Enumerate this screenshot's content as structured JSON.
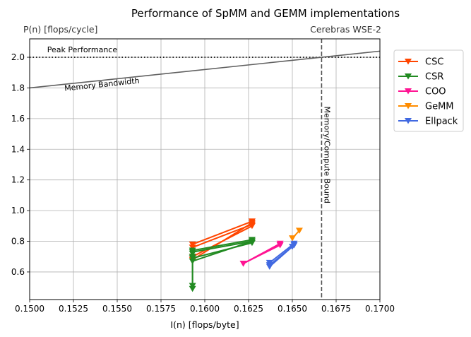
{
  "chart_data": {
    "type": "line",
    "title": "Performance of SpMM and GEMM implementations",
    "xlabel": "I(n) [flops/byte]",
    "ylabel": "P(n) [flops/cycle]",
    "device_label": "Cerebras WSE-2",
    "xlim": [
      0.15,
      0.17
    ],
    "ylim": [
      0.42,
      2.12
    ],
    "xticks": [
      "0.1500",
      "0.1525",
      "0.1550",
      "0.1575",
      "0.1600",
      "0.1625",
      "0.1650",
      "0.1675",
      "0.1700"
    ],
    "xtick_values": [
      0.15,
      0.1525,
      0.155,
      0.1575,
      0.16,
      0.1625,
      0.165,
      0.1675,
      0.17
    ],
    "yticks": [
      "0.6",
      "0.8",
      "1.0",
      "1.2",
      "1.4",
      "1.6",
      "1.8",
      "2.0"
    ],
    "ytick_values": [
      0.6,
      0.8,
      1.0,
      1.2,
      1.4,
      1.6,
      1.8,
      2.0
    ],
    "grid": true,
    "legend_position": "outside-right",
    "peak": {
      "label": "Peak Performance",
      "y": 2.0
    },
    "bandwidth": {
      "label": "Memory Bandwidth",
      "x": [
        0.15,
        0.17
      ],
      "y": [
        1.8,
        2.04
      ]
    },
    "ridge": {
      "label": "Memory/Compute Bound",
      "x": 0.16667
    },
    "series": [
      {
        "name": "CSC",
        "color": "#ff4500",
        "segments": [
          [
            [
              0.1593,
              0.78
            ],
            [
              0.1627,
              0.93
            ]
          ],
          [
            [
              0.1593,
              0.76
            ],
            [
              0.1627,
              0.91
            ]
          ],
          [
            [
              0.1593,
              0.7
            ],
            [
              0.1627,
              0.9
            ]
          ],
          [
            [
              0.1593,
              0.68
            ],
            [
              0.1627,
              0.92
            ]
          ]
        ]
      },
      {
        "name": "CSR",
        "color": "#228b22",
        "segments": [
          [
            [
              0.1593,
              0.74
            ],
            [
              0.1627,
              0.81
            ]
          ],
          [
            [
              0.1593,
              0.73
            ],
            [
              0.1627,
              0.8
            ]
          ],
          [
            [
              0.1593,
              0.69
            ],
            [
              0.1627,
              0.79
            ]
          ],
          [
            [
              0.1593,
              0.67
            ],
            [
              0.1627,
              0.8
            ]
          ],
          [
            [
              0.1593,
              0.72
            ],
            [
              0.1593,
              0.49
            ]
          ],
          [
            [
              0.1593,
              0.7
            ],
            [
              0.1593,
              0.51
            ]
          ]
        ]
      },
      {
        "name": "COO",
        "color": "#ff1493",
        "segments": [
          [
            [
              0.1622,
              0.655
            ],
            [
              0.1643,
              0.785
            ]
          ],
          [
            [
              0.1622,
              0.655
            ],
            [
              0.1643,
              0.775
            ]
          ]
        ]
      },
      {
        "name": "GeMM",
        "color": "#ff8c00",
        "segments": [
          [
            [
              0.165,
              0.82
            ],
            [
              0.1654,
              0.87
            ]
          ]
        ]
      },
      {
        "name": "Ellpack",
        "color": "#4169e1",
        "segments": [
          [
            [
              0.1637,
              0.66
            ],
            [
              0.1651,
              0.785
            ]
          ],
          [
            [
              0.1637,
              0.645
            ],
            [
              0.1651,
              0.775
            ]
          ],
          [
            [
              0.1637,
              0.635
            ],
            [
              0.165,
              0.765
            ]
          ]
        ]
      }
    ]
  }
}
